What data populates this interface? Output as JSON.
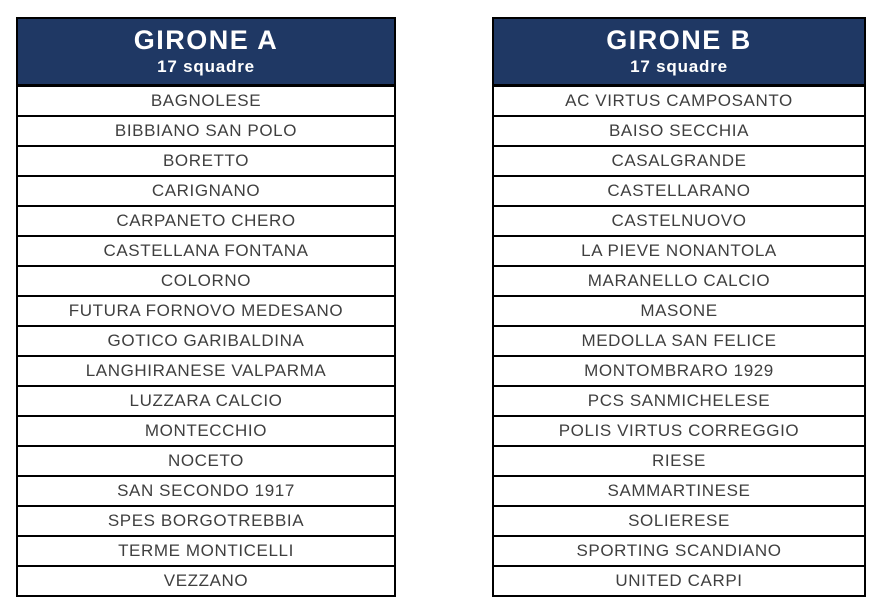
{
  "colors": {
    "header_bg": "#1f3864",
    "header_text": "#ffffff",
    "row_text": "#3f3f3f",
    "border": "#000000",
    "page_bg": "#ffffff"
  },
  "groups": [
    {
      "title": "GIRONE A",
      "subtitle": "17 squadre",
      "teams": [
        "BAGNOLESE",
        "BIBBIANO SAN POLO",
        "BORETTO",
        "CARIGNANO",
        "CARPANETO CHERO",
        "CASTELLANA FONTANA",
        "COLORNO",
        "FUTURA FORNOVO MEDESANO",
        "GOTICO GARIBALDINA",
        "LANGHIRANESE VALPARMA",
        "LUZZARA CALCIO",
        "MONTECCHIO",
        "NOCETO",
        "SAN SECONDO 1917",
        "SPES BORGOTREBBIA",
        "TERME MONTICELLI",
        "VEZZANO"
      ]
    },
    {
      "title": "GIRONE B",
      "subtitle": "17 squadre",
      "teams": [
        "AC VIRTUS CAMPOSANTO",
        "BAISO SECCHIA",
        "CASALGRANDE",
        "CASTELLARANO",
        "CASTELNUOVO",
        "LA PIEVE NONANTOLA",
        "MARANELLO CALCIO",
        "MASONE",
        "MEDOLLA SAN FELICE",
        "MONTOMBRARO 1929",
        "PCS SANMICHELESE",
        "POLIS VIRTUS CORREGGIO",
        "RIESE",
        "SAMMARTINESE",
        "SOLIERESE",
        "SPORTING SCANDIANO",
        "UNITED CARPI"
      ]
    }
  ]
}
